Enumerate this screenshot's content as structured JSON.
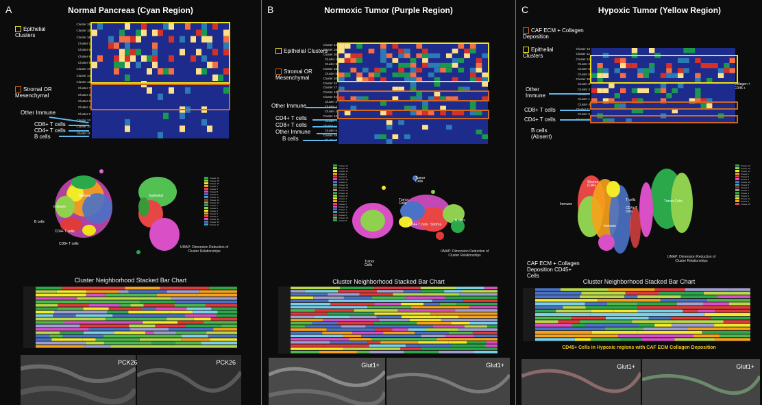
{
  "panels": [
    {
      "letter": "A",
      "title": "Normal Pancreas (Cyan Region)",
      "annotations": {
        "epithelial": "Epithelial Clusters",
        "stromal": "Stromal OR Mesenchymal",
        "other_immune": "Other Immune",
        "cd8": "CD8+ T cells",
        "cd4": "CD4+ T cells",
        "bcells": "B cells"
      },
      "heatmap_rows": [
        "Cluster 15",
        "Cluster 18",
        "Cluster 16",
        "Cluster 1",
        "Cluster 5",
        "Cluster 8",
        "Cluster 9",
        "Cluster 17",
        "Cluster 14",
        "Cluster 12",
        "Cluster 7",
        "Cluster 3",
        "Cluster 6",
        "Cluster 4",
        "Cluster 2",
        "Cluster 13",
        "Cluster 10",
        "Cluster 11"
      ],
      "heatmap_cols": [
        "VIMENTIN",
        "HYPOX 2LAB",
        "GLUT1",
        "PD-L1",
        "CD45",
        "CD3",
        "CD4",
        "CD8",
        "CD20",
        "Ki67",
        "PCK",
        "PDGFR",
        "SMA",
        "CD31",
        "FAP",
        "COL1",
        "CASP3",
        "MCT4",
        "PCAD",
        "SOX9",
        "ECAD",
        "CDX2",
        "ARID1A",
        "SMAD4",
        "HLO"
      ],
      "umap_labels": {
        "stromal": "Stromal",
        "epithelial": "Epithelial",
        "immune": "Immune",
        "bcells": "B cells",
        "cd4": "CD4+ T cells",
        "cd8": "CD8+ T cells"
      },
      "umap_note": "UMAP: Dimension Reduction of Cluster Relationships",
      "bar_title": "Cluster Neighborhood Stacked Bar Chart",
      "tissue_labels": [
        "",
        "PCK26",
        "PCK26"
      ]
    },
    {
      "letter": "B",
      "title": "Normoxic Tumor (Purple Region)",
      "annotations": {
        "epithelial": "Epithelial Clusters",
        "stromal": "Stromal OR Mesenchymal",
        "other_immune": "Other Immune",
        "cd4": "CD4+ T cells",
        "cd8": "CD8+ T cells",
        "other_immune2": "Other Immune",
        "bcells": "B cells"
      },
      "heatmap_rows": [
        "Cluster 14",
        "Cluster 16",
        "Cluster 20",
        "Cluster 1",
        "Cluster 9",
        "Cluster 18",
        "Cluster 5",
        "Cluster 10",
        "Cluster 15",
        "Cluster 17",
        "Cluster 13",
        "Cluster 21",
        "Cluster 3",
        "Cluster 4",
        "Cluster 2",
        "Cluster 12",
        "Cluster 7",
        "Cluster 11",
        "Cluster 6",
        "Cluster 19",
        "Cluster 8"
      ],
      "umap_labels": {
        "tumor_cells_top": "Tumor Cells",
        "tumor_cells_mid": "Tumor Cells",
        "tumor_cells_bottom": "Tumor Cells",
        "bcells": "B cells",
        "cd4": "CD4+ T cells",
        "stroma": "Stroma"
      },
      "umap_note": "UMAP: Dimension Reduction of Cluster Relationships",
      "bar_title": "Cluster Neighborhood Stacked Bar Chart",
      "tissue_labels": [
        "Glut1+",
        "Glut1+"
      ]
    },
    {
      "letter": "C",
      "title": "Hypoxic Tumor (Yellow Region)",
      "annotations": {
        "caf": "CAF ECM + Collagen Deposition",
        "epithelial": "Epithelial Clusters",
        "other_immune": "Other Immune",
        "cd8": "CD8+ T cells",
        "cd4": "CD4+ T cells",
        "bcells": "B cells (Absent)",
        "collagen": "Collagen + CD45 +"
      },
      "heatmap_rows": [
        "Cluster 13",
        "Cluster 12",
        "Cluster 14",
        "Cluster 2",
        "Cluster 6",
        "Cluster 5",
        "Cluster 10",
        "Cluster 8",
        "Cluster 3",
        "Cluster 7",
        "Cluster 1",
        "Cluster 4",
        "Cluster 11",
        "Cluster 9",
        "Cluster 15"
      ],
      "umap_labels": {
        "stroma": "Stroma (CAF)",
        "tcells": "T cells",
        "cd4": "CD4+ T cells",
        "immune": "Immune",
        "immune2": "Immune",
        "tumor": "Tumor Cells"
      },
      "umap_note": "UMAP: Dimension Reduction of Cluster Relationships",
      "umap_side_caption": "CAF  ECM + Collagen Deposition CD45+ Cells",
      "bar_title": "Cluster Neighborhood Stacked Bar Chart",
      "yellow_caption": "CD45+ Cells in Hypoxic regions with CAF ECM Collagen Deposition",
      "tissue_labels": [
        "Glut1+",
        "Glut1+"
      ]
    }
  ],
  "colors": {
    "heat_bg": "#1d2c8c",
    "yellow_box": "#f0e21a",
    "orange_box": "#d2691e",
    "arrow": "#5fb9ee",
    "divider": "#c8641e"
  }
}
